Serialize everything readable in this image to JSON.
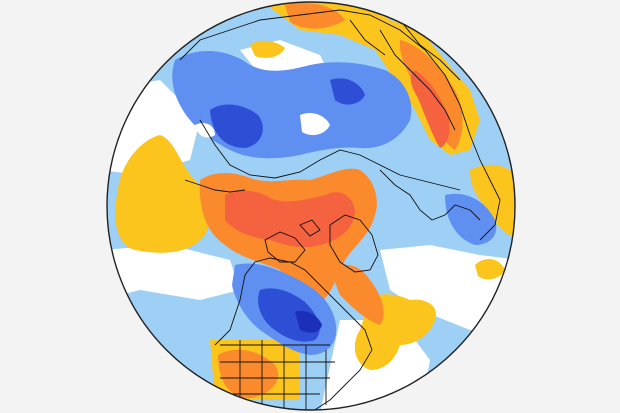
{
  "map": {
    "projection": "north-polar-stereographic",
    "field": "anomaly",
    "colors": {
      "page_background": "#f3f3f3",
      "circle_outline": "#222222",
      "neutral": "#ffffff",
      "cold_light": "#9ed0f5",
      "cold_medium": "#5f8ff0",
      "cold_strong": "#2c4fd6",
      "cold_extreme": "#1c2fb8",
      "warm_light": "#fbc51d",
      "warm_medium": "#fa8a2c",
      "warm_strong": "#f4623f",
      "coastline": "#111111"
    },
    "regions": [
      {
        "name": "north-pacific-warm-anomaly",
        "category": "warm_light"
      },
      {
        "name": "siberia-cold-anomaly",
        "category": "cold_medium"
      },
      {
        "name": "east-siberia-cold-core",
        "category": "cold_strong"
      },
      {
        "name": "arctic-warm-anomaly",
        "category": "warm_strong"
      },
      {
        "name": "central-asia-warm-anomaly",
        "category": "warm_strong"
      },
      {
        "name": "canada-cold-anomaly",
        "category": "cold_strong"
      },
      {
        "name": "north-atlantic-cold-anomaly",
        "category": "cold_light"
      },
      {
        "name": "us-southwest-warm-anomaly",
        "category": "warm_medium"
      },
      {
        "name": "west-atlantic-warm-anomaly",
        "category": "warm_light"
      },
      {
        "name": "southeast-asia-warm-anomaly",
        "category": "warm_light"
      }
    ]
  }
}
